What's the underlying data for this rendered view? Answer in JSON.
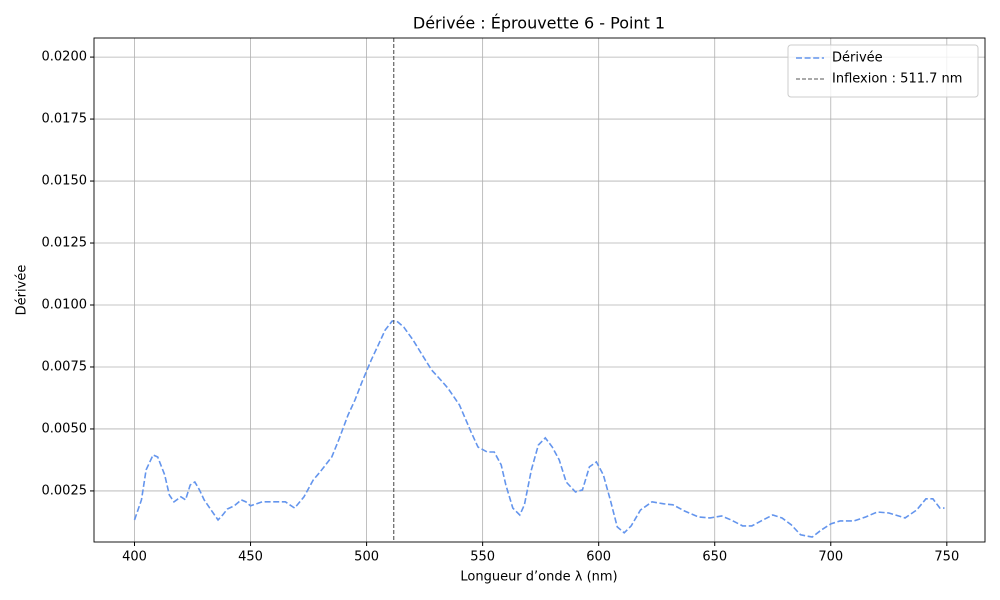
{
  "chart_data": {
    "type": "line",
    "title": "Dérivée : Éprouvette 6 - Point 1",
    "xlabel": "Longueur d’onde λ (nm)",
    "ylabel": "Dérivée",
    "x": [
      400,
      403,
      405,
      408,
      410,
      413,
      415,
      417,
      420,
      422,
      424,
      426,
      428,
      430,
      433,
      436,
      438,
      440,
      443,
      446,
      448,
      450,
      455,
      460,
      465,
      469,
      473,
      477,
      480,
      485,
      488,
      492,
      495,
      498,
      502,
      505,
      508,
      511,
      513,
      516,
      520,
      524,
      528,
      532,
      535,
      540,
      545,
      548,
      552,
      555,
      558,
      560,
      563,
      566,
      568,
      571,
      574,
      577,
      580,
      583,
      586,
      590,
      593,
      596,
      599,
      602,
      605,
      608,
      611,
      614,
      618,
      623,
      628,
      632,
      637,
      643,
      648,
      653,
      657,
      662,
      666,
      670,
      675,
      679,
      683,
      687,
      692,
      696,
      700,
      704,
      710,
      715,
      720,
      725,
      732,
      737,
      741,
      744,
      747,
      749
    ],
    "series": [
      {
        "name": "Dérivée",
        "color": "#6495ed",
        "values": [
          0.00133,
          0.00214,
          0.00335,
          0.00395,
          0.00387,
          0.00315,
          0.00234,
          0.00206,
          0.00226,
          0.00214,
          0.00274,
          0.00286,
          0.00254,
          0.00214,
          0.00173,
          0.00133,
          0.00153,
          0.00177,
          0.0019,
          0.00214,
          0.00206,
          0.0019,
          0.00206,
          0.00206,
          0.00206,
          0.00181,
          0.00226,
          0.00294,
          0.00327,
          0.00387,
          0.00456,
          0.00556,
          0.00617,
          0.00689,
          0.00778,
          0.00838,
          0.00899,
          0.00935,
          0.00935,
          0.00911,
          0.00859,
          0.00798,
          0.00738,
          0.00697,
          0.00665,
          0.00597,
          0.00488,
          0.00427,
          0.00407,
          0.00407,
          0.00355,
          0.00274,
          0.00181,
          0.00153,
          0.00194,
          0.00335,
          0.00435,
          0.00464,
          0.00427,
          0.00375,
          0.00286,
          0.00246,
          0.00254,
          0.00347,
          0.00367,
          0.00315,
          0.00214,
          0.00105,
          0.00081,
          0.00109,
          0.00173,
          0.00206,
          0.00198,
          0.00194,
          0.00169,
          0.00145,
          0.00141,
          0.00149,
          0.00133,
          0.00109,
          0.00109,
          0.00129,
          0.00153,
          0.00141,
          0.00113,
          0.00073,
          0.00064,
          0.00093,
          0.00117,
          0.00129,
          0.00129,
          0.00145,
          0.00165,
          0.00161,
          0.00141,
          0.00173,
          0.00218,
          0.00218,
          0.00181,
          0.00181
        ]
      }
    ],
    "vline": {
      "x": 511.7,
      "label": "Inflexion : 511.7 nm",
      "color": "#555555"
    },
    "xlim": [
      382.55,
      766.45
    ],
    "ylim": [
      0.00044,
      0.02077
    ],
    "xticks": [
      400,
      450,
      500,
      550,
      600,
      650,
      700,
      750
    ],
    "yticks": [
      0.0025,
      {
        "value": 0.005,
        "label": "0.0050"
      },
      0.0075,
      {
        "value": 0.01,
        "label": "0.0100"
      },
      0.0125,
      {
        "value": 0.015,
        "label": "0.0150"
      },
      0.0175,
      {
        "value": 0.02,
        "label": "0.0200"
      }
    ],
    "grid": true,
    "legend": "upper right"
  }
}
